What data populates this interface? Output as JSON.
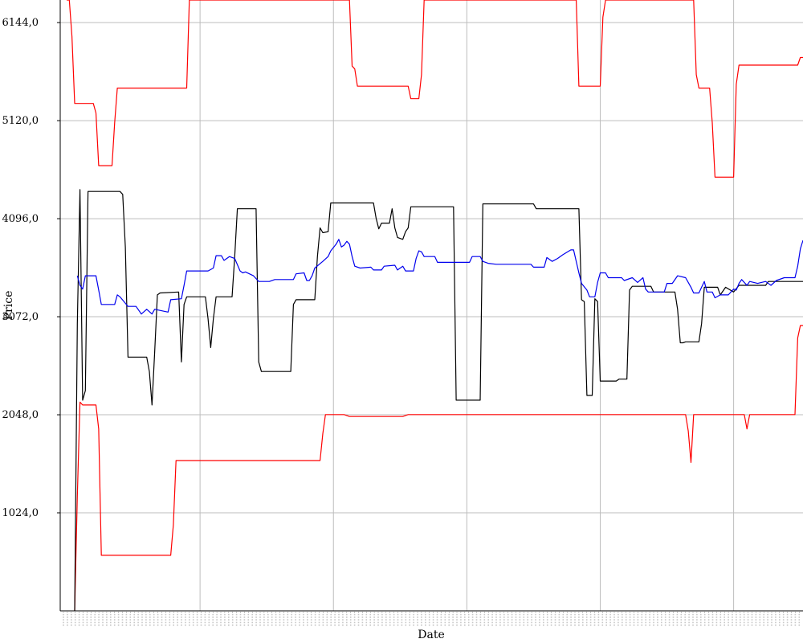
{
  "chart_data": {
    "type": "line",
    "xlabel": "Date",
    "ylabel": "Price",
    "ylim": [
      0,
      6380
    ],
    "yticks": [
      1024,
      2048,
      3072,
      4096,
      5120,
      6144
    ],
    "ytick_labels": [
      "1024,0",
      "2048,0",
      "3072,0",
      "4096,0",
      "5120,0",
      "6144,0"
    ],
    "xlim": [
      0,
      276
    ],
    "x_grid": [
      50,
      100,
      150,
      200,
      250
    ],
    "x_tick_labels_note": "",
    "grid": true,
    "series": [
      {
        "color": "#ff0000",
        "points": [
          [
            0,
            6380
          ],
          [
            1,
            6380
          ],
          [
            2,
            6000
          ],
          [
            3,
            5300
          ],
          [
            10,
            5300
          ],
          [
            11,
            5200
          ],
          [
            12,
            4650
          ],
          [
            17,
            4650
          ],
          [
            18,
            5100
          ],
          [
            19,
            5460
          ],
          [
            45,
            5460
          ],
          [
            46,
            6380
          ],
          [
            106,
            6380
          ],
          [
            107,
            5690
          ],
          [
            108,
            5660
          ],
          [
            109,
            5480
          ],
          [
            128,
            5480
          ],
          [
            129,
            5350
          ],
          [
            132,
            5350
          ],
          [
            133,
            5600
          ],
          [
            134,
            6380
          ],
          [
            191,
            6380
          ],
          [
            192,
            5480
          ],
          [
            200,
            5480
          ],
          [
            201,
            6200
          ],
          [
            202,
            6380
          ],
          [
            235,
            6380
          ],
          [
            236,
            5600
          ],
          [
            237,
            5460
          ],
          [
            241,
            5460
          ],
          [
            242,
            5100
          ],
          [
            243,
            4530
          ],
          [
            250,
            4530
          ],
          [
            251,
            5500
          ],
          [
            252,
            5700
          ],
          [
            274,
            5700
          ],
          [
            275,
            5780
          ],
          [
            276,
            5780
          ]
        ]
      },
      {
        "color": "#ff0000",
        "points": [
          [
            3,
            0
          ],
          [
            4,
            1200
          ],
          [
            5,
            2180
          ],
          [
            6,
            2150
          ],
          [
            11,
            2150
          ],
          [
            12,
            1900
          ],
          [
            13,
            580
          ],
          [
            39,
            580
          ],
          [
            40,
            900
          ],
          [
            41,
            1570
          ],
          [
            95,
            1570
          ],
          [
            96,
            1850
          ],
          [
            97,
            2050
          ],
          [
            104,
            2050
          ],
          [
            106,
            2030
          ],
          [
            126,
            2030
          ],
          [
            128,
            2050
          ],
          [
            232,
            2050
          ],
          [
            233,
            1880
          ],
          [
            234,
            1550
          ],
          [
            235,
            2050
          ],
          [
            254,
            2050
          ],
          [
            255,
            1900
          ],
          [
            256,
            2050
          ],
          [
            273,
            2050
          ],
          [
            274,
            2850
          ],
          [
            275,
            2980
          ],
          [
            276,
            2980
          ]
        ]
      },
      {
        "color": "#000000",
        "points": [
          [
            3,
            0
          ],
          [
            4,
            3000
          ],
          [
            5,
            4400
          ],
          [
            6,
            2200
          ],
          [
            7,
            2300
          ],
          [
            8,
            4380
          ],
          [
            20,
            4380
          ],
          [
            21,
            4350
          ],
          [
            22,
            3800
          ],
          [
            23,
            2650
          ],
          [
            30,
            2650
          ],
          [
            31,
            2500
          ],
          [
            32,
            2150
          ],
          [
            33,
            2700
          ],
          [
            34,
            3300
          ],
          [
            35,
            3320
          ],
          [
            42,
            3330
          ],
          [
            43,
            2600
          ],
          [
            44,
            3200
          ],
          [
            45,
            3280
          ],
          [
            52,
            3280
          ],
          [
            53,
            3050
          ],
          [
            54,
            2750
          ],
          [
            55,
            3050
          ],
          [
            56,
            3280
          ],
          [
            62,
            3280
          ],
          [
            63,
            3700
          ],
          [
            64,
            4200
          ],
          [
            71,
            4200
          ],
          [
            72,
            2600
          ],
          [
            73,
            2500
          ],
          [
            84,
            2500
          ],
          [
            85,
            3200
          ],
          [
            86,
            3250
          ],
          [
            93,
            3250
          ],
          [
            94,
            3700
          ],
          [
            95,
            4000
          ],
          [
            96,
            3950
          ],
          [
            98,
            3960
          ],
          [
            99,
            4260
          ],
          [
            115,
            4260
          ],
          [
            116,
            4100
          ],
          [
            117,
            3990
          ],
          [
            118,
            4050
          ],
          [
            121,
            4050
          ],
          [
            122,
            4200
          ],
          [
            123,
            4000
          ],
          [
            124,
            3900
          ],
          [
            126,
            3880
          ],
          [
            127,
            3960
          ],
          [
            128,
            4000
          ],
          [
            129,
            4220
          ],
          [
            145,
            4220
          ],
          [
            146,
            2200
          ],
          [
            155,
            2200
          ],
          [
            156,
            4250
          ],
          [
            175,
            4250
          ],
          [
            176,
            4200
          ],
          [
            192,
            4200
          ],
          [
            193,
            3250
          ],
          [
            194,
            3230
          ],
          [
            195,
            2250
          ],
          [
            197,
            2250
          ],
          [
            198,
            3260
          ],
          [
            199,
            3230
          ],
          [
            200,
            2400
          ],
          [
            206,
            2400
          ],
          [
            207,
            2420
          ],
          [
            210,
            2420
          ],
          [
            211,
            3350
          ],
          [
            212,
            3390
          ],
          [
            219,
            3390
          ],
          [
            220,
            3330
          ],
          [
            228,
            3330
          ],
          [
            229,
            3150
          ],
          [
            230,
            2800
          ],
          [
            231,
            2800
          ],
          [
            232,
            2810
          ],
          [
            237,
            2810
          ],
          [
            238,
            3000
          ],
          [
            239,
            3380
          ],
          [
            244,
            3380
          ],
          [
            245,
            3300
          ],
          [
            247,
            3380
          ],
          [
            250,
            3330
          ],
          [
            252,
            3400
          ],
          [
            262,
            3400
          ],
          [
            263,
            3440
          ],
          [
            276,
            3440
          ]
        ]
      },
      {
        "color": "#0000ee",
        "points": [
          [
            4,
            3500
          ],
          [
            5,
            3400
          ],
          [
            6,
            3360
          ],
          [
            7,
            3500
          ],
          [
            11,
            3500
          ],
          [
            12,
            3350
          ],
          [
            13,
            3200
          ],
          [
            18,
            3200
          ],
          [
            19,
            3300
          ],
          [
            20,
            3280
          ],
          [
            23,
            3180
          ],
          [
            26,
            3180
          ],
          [
            28,
            3100
          ],
          [
            30,
            3150
          ],
          [
            32,
            3100
          ],
          [
            33,
            3150
          ],
          [
            38,
            3120
          ],
          [
            39,
            3250
          ],
          [
            43,
            3260
          ],
          [
            44,
            3400
          ],
          [
            45,
            3550
          ],
          [
            53,
            3550
          ],
          [
            55,
            3580
          ],
          [
            56,
            3710
          ],
          [
            58,
            3710
          ],
          [
            59,
            3660
          ],
          [
            61,
            3700
          ],
          [
            63,
            3680
          ],
          [
            65,
            3550
          ],
          [
            66,
            3530
          ],
          [
            67,
            3540
          ],
          [
            70,
            3500
          ],
          [
            72,
            3440
          ],
          [
            73,
            3440
          ],
          [
            76,
            3440
          ],
          [
            78,
            3460
          ],
          [
            85,
            3460
          ],
          [
            86,
            3520
          ],
          [
            89,
            3530
          ],
          [
            90,
            3450
          ],
          [
            91,
            3450
          ],
          [
            92,
            3500
          ],
          [
            93,
            3580
          ],
          [
            96,
            3650
          ],
          [
            98,
            3700
          ],
          [
            99,
            3760
          ],
          [
            101,
            3830
          ],
          [
            102,
            3880
          ],
          [
            103,
            3800
          ],
          [
            104,
            3820
          ],
          [
            105,
            3860
          ],
          [
            106,
            3830
          ],
          [
            107,
            3700
          ],
          [
            108,
            3600
          ],
          [
            110,
            3580
          ],
          [
            114,
            3590
          ],
          [
            115,
            3560
          ],
          [
            118,
            3560
          ],
          [
            119,
            3600
          ],
          [
            123,
            3610
          ],
          [
            124,
            3560
          ],
          [
            126,
            3600
          ],
          [
            127,
            3550
          ],
          [
            130,
            3550
          ],
          [
            131,
            3680
          ],
          [
            132,
            3760
          ],
          [
            133,
            3750
          ],
          [
            134,
            3700
          ],
          [
            138,
            3700
          ],
          [
            139,
            3640
          ],
          [
            148,
            3640
          ],
          [
            151,
            3640
          ],
          [
            152,
            3700
          ],
          [
            155,
            3700
          ],
          [
            156,
            3650
          ],
          [
            158,
            3630
          ],
          [
            161,
            3620
          ],
          [
            174,
            3620
          ],
          [
            175,
            3590
          ],
          [
            179,
            3590
          ],
          [
            180,
            3690
          ],
          [
            182,
            3650
          ],
          [
            184,
            3680
          ],
          [
            186,
            3720
          ],
          [
            189,
            3770
          ],
          [
            190,
            3770
          ],
          [
            191,
            3650
          ],
          [
            192,
            3530
          ],
          [
            193,
            3420
          ],
          [
            195,
            3350
          ],
          [
            196,
            3280
          ],
          [
            198,
            3280
          ],
          [
            199,
            3430
          ],
          [
            200,
            3530
          ],
          [
            202,
            3530
          ],
          [
            203,
            3480
          ],
          [
            208,
            3480
          ],
          [
            209,
            3450
          ],
          [
            212,
            3480
          ],
          [
            214,
            3430
          ],
          [
            216,
            3480
          ],
          [
            217,
            3360
          ],
          [
            218,
            3330
          ],
          [
            224,
            3330
          ],
          [
            225,
            3420
          ],
          [
            227,
            3420
          ],
          [
            229,
            3500
          ],
          [
            232,
            3480
          ],
          [
            234,
            3380
          ],
          [
            235,
            3320
          ],
          [
            237,
            3320
          ],
          [
            238,
            3380
          ],
          [
            239,
            3440
          ],
          [
            240,
            3330
          ],
          [
            242,
            3330
          ],
          [
            243,
            3270
          ],
          [
            245,
            3300
          ],
          [
            248,
            3300
          ],
          [
            250,
            3360
          ],
          [
            251,
            3350
          ],
          [
            252,
            3420
          ],
          [
            253,
            3460
          ],
          [
            255,
            3400
          ],
          [
            256,
            3440
          ],
          [
            259,
            3420
          ],
          [
            262,
            3440
          ],
          [
            264,
            3400
          ],
          [
            266,
            3450
          ],
          [
            269,
            3480
          ],
          [
            273,
            3480
          ],
          [
            274,
            3600
          ],
          [
            275,
            3780
          ],
          [
            276,
            3870
          ]
        ]
      }
    ]
  }
}
